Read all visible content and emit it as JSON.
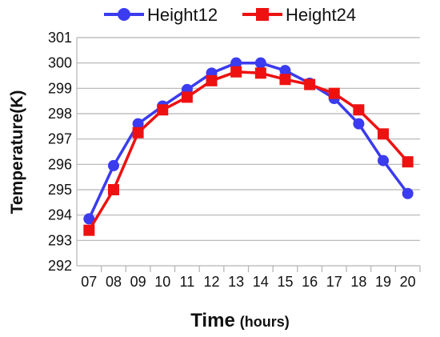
{
  "chart_data": {
    "type": "line",
    "title": "",
    "xlabel": "Time",
    "xlabel_unit": "(hours)",
    "ylabel": "Temperature(K)",
    "x": [
      "07",
      "08",
      "09",
      "10",
      "11",
      "12",
      "13",
      "14",
      "15",
      "16",
      "17",
      "18",
      "19",
      "20"
    ],
    "ylim": [
      292,
      301
    ],
    "yticks": [
      292,
      293,
      294,
      295,
      296,
      297,
      298,
      299,
      300,
      301
    ],
    "grid": true,
    "legend": "top",
    "series": [
      {
        "name": "Height12",
        "color": "#3b3bf0",
        "marker": "circle",
        "values": [
          293.85,
          295.95,
          297.6,
          298.3,
          298.95,
          299.6,
          300.0,
          300.0,
          299.7,
          299.2,
          298.6,
          297.6,
          296.15,
          294.85
        ]
      },
      {
        "name": "Height24",
        "color": "#ee1111",
        "marker": "square",
        "values": [
          293.4,
          295.0,
          297.25,
          298.15,
          298.65,
          299.3,
          299.65,
          299.6,
          299.35,
          299.15,
          298.8,
          298.15,
          297.2,
          296.1
        ]
      }
    ]
  }
}
